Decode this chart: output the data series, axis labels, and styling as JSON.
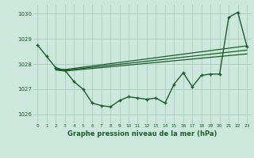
{
  "background_color": "#cce8dc",
  "grid_color": "#aaccbb",
  "line_color": "#1a5c2a",
  "title": "Graphe pression niveau de la mer (hPa)",
  "xlim": [
    -0.5,
    23.5
  ],
  "ylim": [
    1025.65,
    1030.35
  ],
  "yticks": [
    1026,
    1027,
    1028,
    1029,
    1030
  ],
  "xticks": [
    0,
    1,
    2,
    3,
    4,
    5,
    6,
    7,
    8,
    9,
    10,
    11,
    12,
    13,
    14,
    15,
    16,
    17,
    18,
    19,
    20,
    21,
    22,
    23
  ],
  "series1_x": [
    0,
    1,
    2,
    3,
    4,
    5,
    6,
    7,
    8,
    9,
    10,
    11,
    12,
    13,
    14,
    15,
    16,
    17,
    18,
    19,
    20,
    21,
    22,
    23
  ],
  "series1_y": [
    1028.75,
    1028.3,
    1027.85,
    1027.75,
    1027.3,
    1027.0,
    1026.45,
    1026.35,
    1026.3,
    1026.55,
    1026.7,
    1026.65,
    1026.6,
    1026.65,
    1026.45,
    1027.2,
    1027.65,
    1027.1,
    1027.55,
    1027.6,
    1027.6,
    1029.85,
    1030.05,
    1028.7
  ],
  "series2_x": [
    2,
    3,
    23
  ],
  "series2_y": [
    1027.8,
    1027.78,
    1028.72
  ],
  "series3_x": [
    2,
    3,
    23
  ],
  "series3_y": [
    1027.78,
    1027.75,
    1028.55
  ],
  "series4_x": [
    2,
    3,
    23
  ],
  "series4_y": [
    1027.76,
    1027.72,
    1028.4
  ],
  "figwidth": 3.2,
  "figheight": 2.0,
  "dpi": 100
}
